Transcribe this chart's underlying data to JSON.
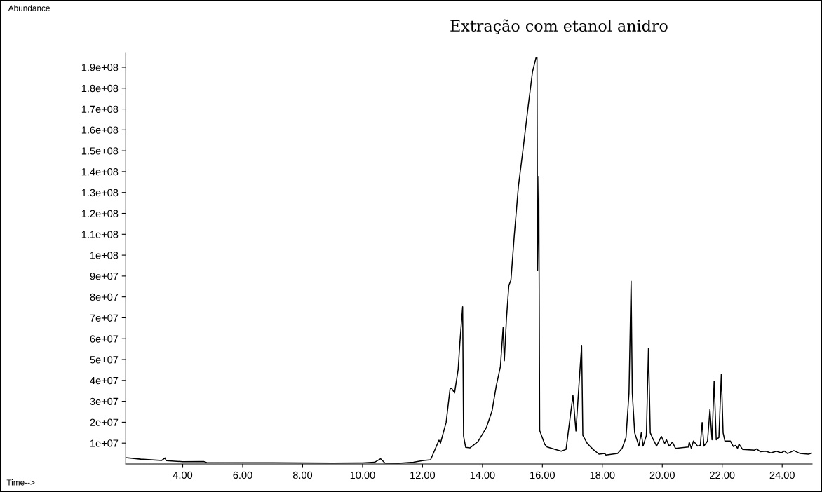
{
  "chart_data": {
    "type": "line",
    "title": "Extração com etanol anidro",
    "annotations": [
      "Abundance",
      "Time-->"
    ],
    "x": [
      2.1,
      2.6,
      3.3,
      3.41,
      3.45,
      4.0,
      4.7,
      4.8,
      6.0,
      7.0,
      8.0,
      9.0,
      10.0,
      10.4,
      10.6,
      10.75,
      11.2,
      11.7,
      12.0,
      12.27,
      12.55,
      12.6,
      12.79,
      12.92,
      12.97,
      13.07,
      13.19,
      13.25,
      13.34,
      13.37,
      13.44,
      13.58,
      13.85,
      14.13,
      14.32,
      14.46,
      14.6,
      14.69,
      14.73,
      14.8,
      14.88,
      14.95,
      15.06,
      15.2,
      15.34,
      15.53,
      15.67,
      15.79,
      15.82,
      15.84,
      15.88,
      15.91,
      16.08,
      16.16,
      16.63,
      16.79,
      16.91,
      17.02,
      17.12,
      17.24,
      17.31,
      17.35,
      17.5,
      17.69,
      17.89,
      18.08,
      18.12,
      18.51,
      18.66,
      18.79,
      18.89,
      18.96,
      19.0,
      19.08,
      19.22,
      19.3,
      19.36,
      19.47,
      19.54,
      19.6,
      19.69,
      19.81,
      19.97,
      20.08,
      20.14,
      20.23,
      20.34,
      20.44,
      20.87,
      20.9,
      20.97,
      21.04,
      21.18,
      21.27,
      21.33,
      21.39,
      21.51,
      21.59,
      21.66,
      21.73,
      21.8,
      21.89,
      21.97,
      22.03,
      22.09,
      22.27,
      22.37,
      22.45,
      22.51,
      22.56,
      22.68,
      23.07,
      23.15,
      23.27,
      23.46,
      23.62,
      23.81,
      23.97,
      24.07,
      24.18,
      24.39,
      24.6,
      24.87,
      25.0
    ],
    "values": [
      3000000.0,
      2300000.0,
      1700000.0,
      2900000.0,
      1600000.0,
      1100000.0,
      1200000.0,
      700000.0,
      600000.0,
      600000.0,
      500000.0,
      400000.0,
      500000.0,
      800000.0,
      2500000.0,
      400000.0,
      300000.0,
      800000.0,
      1600000.0,
      2000000.0,
      11400000.0,
      10000000.0,
      20000000.0,
      36000000.0,
      36300000.0,
      34000000.0,
      45300000.0,
      58600000.0,
      75300000.0,
      13400000.0,
      8000000.0,
      7700000.0,
      10700000.0,
      17400000.0,
      25400000.0,
      37300000.0,
      46700000.0,
      65300000.0,
      49400000.0,
      69300000.0,
      85400000.0,
      88000000.0,
      109000000.0,
      133000000.0,
      149000000.0,
      171800000.0,
      187800000.0,
      194700000.0,
      194700000.0,
      92600000.0,
      137800000.0,
      16000000.0,
      9400000.0,
      8100000.0,
      6100000.0,
      7000000.0,
      20500000.0,
      32900000.0,
      15800000.0,
      42000000.0,
      56800000.0,
      13700000.0,
      9800000.0,
      7000000.0,
      4700000.0,
      5000000.0,
      4300000.0,
      5000000.0,
      7500000.0,
      12700000.0,
      34000000.0,
      87500000.0,
      34000000.0,
      14900000.0,
      8600000.0,
      14900000.0,
      8600000.0,
      13700000.0,
      55400000.0,
      14900000.0,
      12000000.0,
      8600000.0,
      13200000.0,
      9800000.0,
      11600000.0,
      8600000.0,
      10500000.0,
      7500000.0,
      8100000.0,
      10400000.0,
      7500000.0,
      11000000.0,
      8600000.0,
      9000000.0,
      19900000.0,
      8600000.0,
      11000000.0,
      26100000.0,
      11600000.0,
      39600000.0,
      11600000.0,
      12700000.0,
      43000000.0,
      14900000.0,
      11000000.0,
      11000000.0,
      8400000.0,
      8900000.0,
      7500000.0,
      9500000.0,
      7000000.0,
      6600000.0,
      7200000.0,
      5900000.0,
      6100000.0,
      5300000.0,
      6100000.0,
      5300000.0,
      6200000.0,
      5000000.0,
      6400000.0,
      5000000.0,
      4700000.0,
      5200000.0
    ],
    "color": "#000000",
    "line_style": "solid",
    "marker": "none",
    "xlim": [
      2.1,
      25.0
    ],
    "xticks": [
      {
        "value": 4,
        "label": "4.00"
      },
      {
        "value": 6,
        "label": "6.00"
      },
      {
        "value": 8,
        "label": "8.00"
      },
      {
        "value": 10,
        "label": "10.00"
      },
      {
        "value": 12,
        "label": "12.00"
      },
      {
        "value": 14,
        "label": "14.00"
      },
      {
        "value": 16,
        "label": "16.00"
      },
      {
        "value": 18,
        "label": "18.00"
      },
      {
        "value": 20,
        "label": "20.00"
      },
      {
        "value": 22,
        "label": "22.00"
      },
      {
        "value": 24,
        "label": "24.00"
      }
    ],
    "ylim": [
      0,
      197000000.0
    ],
    "yticks": [
      {
        "value": 10000000.0,
        "label": "1e+07"
      },
      {
        "value": 20000000.0,
        "label": "2e+07"
      },
      {
        "value": 30000000.0,
        "label": "3e+07"
      },
      {
        "value": 40000000.0,
        "label": "4e+07"
      },
      {
        "value": 50000000.0,
        "label": "5e+07"
      },
      {
        "value": 60000000.0,
        "label": "6e+07"
      },
      {
        "value": 70000000.0,
        "label": "7e+07"
      },
      {
        "value": 80000000.0,
        "label": "8e+07"
      },
      {
        "value": 90000000.0,
        "label": "9e+07"
      },
      {
        "value": 100000000.0,
        "label": "1e+08"
      },
      {
        "value": 110000000.0,
        "label": "1.1e+08"
      },
      {
        "value": 120000000.0,
        "label": "1.2e+08"
      },
      {
        "value": 130000000.0,
        "label": "1.3e+08"
      },
      {
        "value": 140000000.0,
        "label": "1.4e+08"
      },
      {
        "value": 150000000.0,
        "label": "1.5e+08"
      },
      {
        "value": 160000000.0,
        "label": "1.6e+08"
      },
      {
        "value": 170000000.0,
        "label": "1.7e+08"
      },
      {
        "value": 180000000.0,
        "label": "1.8e+08"
      },
      {
        "value": 190000000.0,
        "label": "1.9e+08"
      }
    ]
  }
}
